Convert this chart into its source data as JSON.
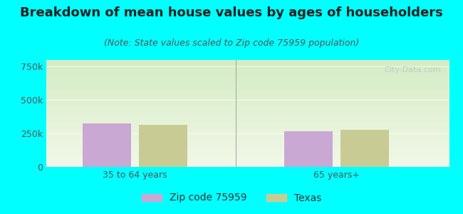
{
  "title": "Breakdown of mean house values by ages of householders",
  "subtitle": "(Note: State values scaled to Zip code 75959 population)",
  "categories": [
    "35 to 64 years",
    "65 years+"
  ],
  "series": {
    "Zip code 75959": [
      325000,
      265000
    ],
    "Texas": [
      315000,
      275000
    ]
  },
  "bar_colors": {
    "Zip code 75959": "#c9a8d4",
    "Texas": "#c8cc94"
  },
  "ylim": [
    0,
    800000
  ],
  "yticks": [
    0,
    250000,
    500000,
    750000
  ],
  "ytick_labels": [
    "0",
    "250k",
    "500k",
    "750k"
  ],
  "background_color": "#00ffff",
  "gradient_top_left": "#d4ecc4",
  "gradient_bottom_right": "#f2f8e8",
  "title_fontsize": 13,
  "subtitle_fontsize": 9,
  "tick_fontsize": 9,
  "legend_fontsize": 10,
  "watermark": "City-Data.com",
  "bar_width": 0.12,
  "group_centers": [
    0.22,
    0.72
  ]
}
